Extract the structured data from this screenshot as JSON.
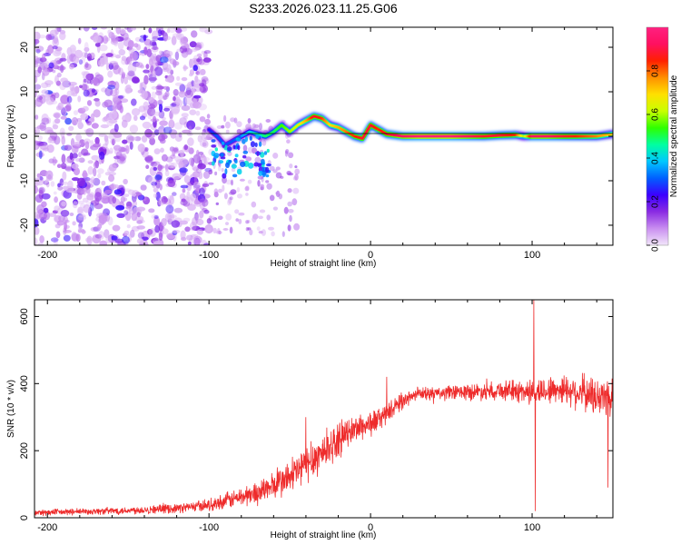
{
  "title": "S233.2026.023.11.25.G06",
  "chart_data": [
    {
      "type": "heatmap",
      "name": "spectrogram",
      "xlabel": "Height of straight line (km)",
      "ylabel": "Frequency (Hz)",
      "xlim": [
        -208,
        150
      ],
      "ylim": [
        -24.5,
        24.5
      ],
      "xticks": [
        -200,
        -100,
        0,
        100
      ],
      "yticks": [
        20,
        10,
        0,
        -10,
        -20
      ],
      "colorbar": {
        "label": "Normalized spectral amplitude",
        "range": [
          0,
          1
        ],
        "ticks": [
          "0.0",
          "0.2",
          "0.4",
          "0.6",
          "0.8"
        ],
        "tick_values": [
          0.0,
          0.2,
          0.4,
          0.6,
          0.8
        ],
        "colors": [
          "#f2e6fa",
          "#c98ef0",
          "#8a2be2",
          "#3c00ff",
          "#0060ff",
          "#00c8ff",
          "#00ffa0",
          "#2eff00",
          "#c8ff00",
          "#ffe000",
          "#ff9000",
          "#ff2000",
          "#ff1060",
          "#ff2080"
        ]
      },
      "trace": {
        "x": [
          -100,
          -95,
          -90,
          -85,
          -80,
          -75,
          -70,
          -65,
          -60,
          -55,
          -50,
          -45,
          -40,
          -35,
          -30,
          -25,
          -20,
          -15,
          -10,
          -5,
          0,
          5,
          10,
          20,
          30,
          40,
          50,
          60,
          70,
          80,
          90,
          95,
          100,
          110,
          120,
          130,
          140,
          150
        ],
        "freq": [
          1.5,
          0,
          -2,
          -1,
          0,
          1,
          0.5,
          0,
          1,
          2.5,
          1,
          2.5,
          3.5,
          4.5,
          4,
          2.5,
          2,
          1,
          0,
          -0.5,
          2.5,
          1.5,
          0.5,
          0,
          0,
          0,
          0,
          0,
          0,
          0.2,
          0.3,
          0,
          0,
          0,
          0,
          0,
          0,
          0.5
        ],
        "amp": [
          0.25,
          0.3,
          0.3,
          0.3,
          0.35,
          0.4,
          0.45,
          0.5,
          0.5,
          0.55,
          0.6,
          0.65,
          0.75,
          0.9,
          0.85,
          0.7,
          0.75,
          0.8,
          0.85,
          0.9,
          0.9,
          0.85,
          0.9,
          0.95,
          1,
          1,
          1,
          0.95,
          0.9,
          0.9,
          0.85,
          0.6,
          0.95,
          0.95,
          0.9,
          0.85,
          0.8,
          0.7
        ]
      },
      "noise_region_x": [
        -208,
        -100
      ]
    },
    {
      "type": "line",
      "name": "snr",
      "xlabel": "Height of straight line (km)",
      "ylabel": "SNR (10 * v/v)",
      "xlim": [
        -208,
        150
      ],
      "ylim": [
        0,
        650
      ],
      "xticks": [
        -200,
        -100,
        0,
        100
      ],
      "yticks": [
        0,
        200,
        400,
        600
      ],
      "color": "#ee2b2b",
      "series": {
        "x": [
          -208,
          -180,
          -150,
          -120,
          -100,
          -90,
          -80,
          -70,
          -60,
          -50,
          -40,
          -30,
          -20,
          -10,
          0,
          10,
          20,
          30,
          40,
          60,
          80,
          100,
          120,
          140,
          150
        ],
        "y": [
          15,
          18,
          22,
          28,
          38,
          50,
          62,
          75,
          95,
          120,
          160,
          195,
          230,
          265,
          280,
          310,
          350,
          370,
          370,
          375,
          380,
          375,
          385,
          360,
          360
        ]
      },
      "noise_amplitude": [
        10,
        10,
        12,
        14,
        18,
        24,
        30,
        36,
        42,
        55,
        60,
        60,
        50,
        40,
        40,
        30,
        25,
        20,
        22,
        25,
        28,
        40,
        45,
        60,
        70
      ],
      "spikes": [
        {
          "x": 101,
          "y": 650
        },
        {
          "x": 102,
          "y": 20
        },
        {
          "x": -40,
          "y": 300
        },
        {
          "x": 10,
          "y": 420
        },
        {
          "x": 147,
          "y": 90
        }
      ]
    }
  ]
}
